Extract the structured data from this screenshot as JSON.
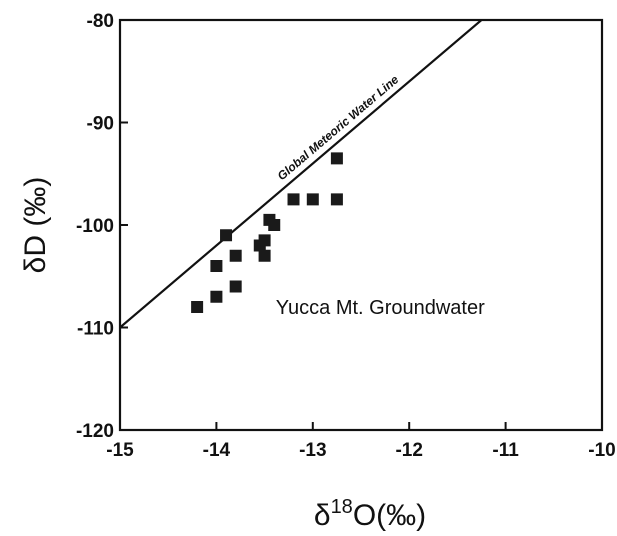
{
  "chart_data": {
    "type": "scatter",
    "title": "",
    "xlabel": "δ18O(‰)",
    "ylabel": "δD (‰)",
    "xlim": [
      -15,
      -10
    ],
    "ylim": [
      -120,
      -80
    ],
    "x_ticks": [
      -15,
      -14,
      -13,
      -12,
      -11,
      -10
    ],
    "y_ticks": [
      -120,
      -110,
      -100,
      -90,
      -80
    ],
    "grid": false,
    "legend": "none",
    "series": [
      {
        "name": "",
        "marker": "square",
        "color": "#1a1a1a",
        "points": [
          {
            "x": -14.2,
            "y": -108
          },
          {
            "x": -14.0,
            "y": -107
          },
          {
            "x": -14.0,
            "y": -104
          },
          {
            "x": -13.9,
            "y": -101
          },
          {
            "x": -13.8,
            "y": -106
          },
          {
            "x": -13.8,
            "y": -103
          },
          {
            "x": -13.55,
            "y": -102
          },
          {
            "x": -13.5,
            "y": -103
          },
          {
            "x": -13.5,
            "y": -101.5
          },
          {
            "x": -13.45,
            "y": -99.5
          },
          {
            "x": -13.4,
            "y": -100
          },
          {
            "x": -13.2,
            "y": -97.5
          },
          {
            "x": -13.0,
            "y": -97.5
          },
          {
            "x": -12.75,
            "y": -97.5
          },
          {
            "x": -12.75,
            "y": -93.5
          }
        ]
      }
    ],
    "reference_line": {
      "label": "Global Meteoric Water Line",
      "slope": 8,
      "intercept": 10,
      "color": "#111111"
    },
    "annotations": [
      {
        "text": "Yucca Mt. Groundwater",
        "x": -12.3,
        "y": -108
      }
    ]
  }
}
